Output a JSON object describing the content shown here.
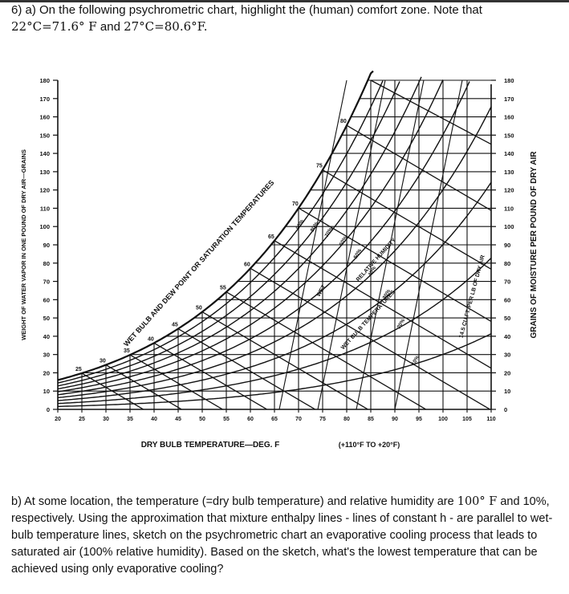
{
  "question_a": {
    "line1": "6) a) On the following psychrometric chart, highlight the (human) comfort zone.  Note that",
    "eq1": "22°C=71.6° F",
    "and": " and ",
    "eq2": "27°C=80.6°F."
  },
  "chart": {
    "left_axis_label": "WEIGHT OF WATER VAPOR IN ONE POUND OF DRY AIR—GRAINS",
    "right_axis_label": "GRAINS OF MOISTURE PER POUND OF DRY AIR",
    "x_axis_label": "DRY BULB TEMPERATURE—DEG. F",
    "x_axis_note": "(+110°F  TO  +20°F)",
    "saturation_label": "WET BULB AND DEW POINT OR SATURATION TEMPERATURES",
    "rh_label": "RELATIVE HUMIDITY",
    "wb_label": "WET BULB TEMPERATURES",
    "volume_label": "14.5 CU.FT. PER LB OF DRY AIR",
    "x_ticks": [
      "20",
      "25",
      "30",
      "35",
      "40",
      "45",
      "50",
      "55",
      "60",
      "65",
      "70",
      "75",
      "80",
      "85",
      "90",
      "95",
      "100",
      "105",
      "110"
    ],
    "y_ticks_left": [
      "180",
      "170",
      "160",
      "150",
      "140",
      "130",
      "120",
      "110",
      "100",
      "90",
      "80",
      "70",
      "60",
      "50",
      "40",
      "30",
      "20",
      "10",
      "0"
    ],
    "y_ticks_right": [
      "180",
      "170",
      "160",
      "150",
      "140",
      "130",
      "120",
      "110",
      "100",
      "90",
      "80",
      "70",
      "60",
      "50",
      "40",
      "30",
      "20",
      "10",
      "0"
    ],
    "sat_temps": [
      "25",
      "30",
      "35",
      "40",
      "45",
      "50",
      "55",
      "60",
      "65",
      "70",
      "75",
      "80"
    ],
    "rh_values": [
      "90%",
      "80%",
      "70%",
      "60%",
      "50%",
      "40%",
      "30%",
      "20%",
      "10%"
    ],
    "wet_label": "WET"
  },
  "question_b": {
    "p1": "b) At some location, the temperature (=dry bulb temperature) and relative humidity are ",
    "m1": "100° F",
    "p2": " and 10%, respectively. Using the approximation that mixture enthalpy lines - lines of constant h - are parallel to wet-bulb temperature lines, sketch on the psychrometric chart an evaporative cooling process that leads to saturated air (100% relative humidity). Based on the sketch, what's the lowest temperature that can be achieved using only evaporative cooling?"
  }
}
